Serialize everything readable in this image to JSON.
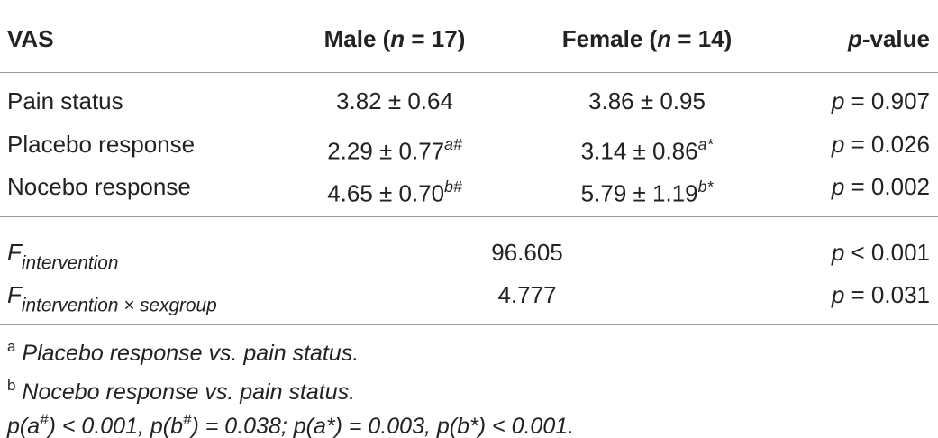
{
  "table": {
    "header": [
      [
        {
          "text": "VAS"
        }
      ],
      [
        {
          "text": "Male ("
        },
        {
          "text": "n",
          "style": "italic"
        },
        {
          "text": " = 17)"
        }
      ],
      [
        {
          "text": "Female ("
        },
        {
          "text": "n",
          "style": "italic"
        },
        {
          "text": " = 14)"
        }
      ],
      [
        {
          "text": "p",
          "style": "italic"
        },
        {
          "text": "-value"
        }
      ]
    ],
    "rows": [
      [
        [
          {
            "text": "Pain status"
          }
        ],
        [
          {
            "text": "3.82 ± 0.64"
          }
        ],
        [
          {
            "text": "3.86 ± 0.95"
          }
        ],
        [
          {
            "text": "p",
            "style": "italic"
          },
          {
            "text": " = 0.907"
          }
        ]
      ],
      [
        [
          {
            "text": "Placebo response"
          }
        ],
        [
          {
            "text": "2.29 ± 0.77"
          },
          {
            "text": "a#",
            "style": "sup-italic"
          }
        ],
        [
          {
            "text": "3.14 ± 0.86"
          },
          {
            "text": "a*",
            "style": "sup-italic"
          }
        ],
        [
          {
            "text": "p",
            "style": "italic"
          },
          {
            "text": " = 0.026"
          }
        ]
      ],
      [
        [
          {
            "text": "Nocebo response"
          }
        ],
        [
          {
            "text": "4.65 ± 0.70"
          },
          {
            "text": "b#",
            "style": "sup-italic"
          }
        ],
        [
          {
            "text": "5.79 ± 1.19"
          },
          {
            "text": "b*",
            "style": "sup-italic"
          }
        ],
        [
          {
            "text": "p",
            "style": "italic"
          },
          {
            "text": " = 0.002"
          }
        ]
      ]
    ],
    "stats": [
      {
        "label": [
          {
            "text": "F",
            "style": "italic"
          },
          {
            "text": "intervention",
            "style": "sub-italic"
          }
        ],
        "value": "96.605",
        "p": [
          {
            "text": "p",
            "style": "italic"
          },
          {
            "text": " < 0.001"
          }
        ]
      },
      {
        "label": [
          {
            "text": "F",
            "style": "italic"
          },
          {
            "text": "intervention × sexgroup",
            "style": "sub-italic"
          }
        ],
        "value": "4.777",
        "p": [
          {
            "text": "p",
            "style": "italic"
          },
          {
            "text": " = 0.031"
          }
        ]
      }
    ]
  },
  "footnotes": [
    [
      {
        "text": "a",
        "style": "sup"
      },
      {
        "text": " Placebo response vs. pain status.",
        "style": "italic"
      }
    ],
    [
      {
        "text": "b",
        "style": "sup"
      },
      {
        "text": " Nocebo response vs. pain status.",
        "style": "italic"
      }
    ],
    [
      {
        "text": "p(a",
        "style": "italic"
      },
      {
        "text": "#",
        "style": "sup-italic"
      },
      {
        "text": ") < 0.001, p(b",
        "style": "italic"
      },
      {
        "text": "#",
        "style": "sup-italic"
      },
      {
        "text": ") = 0.038; p(a*) = 0.003, p(b*) < 0.001.",
        "style": "italic"
      }
    ]
  ]
}
